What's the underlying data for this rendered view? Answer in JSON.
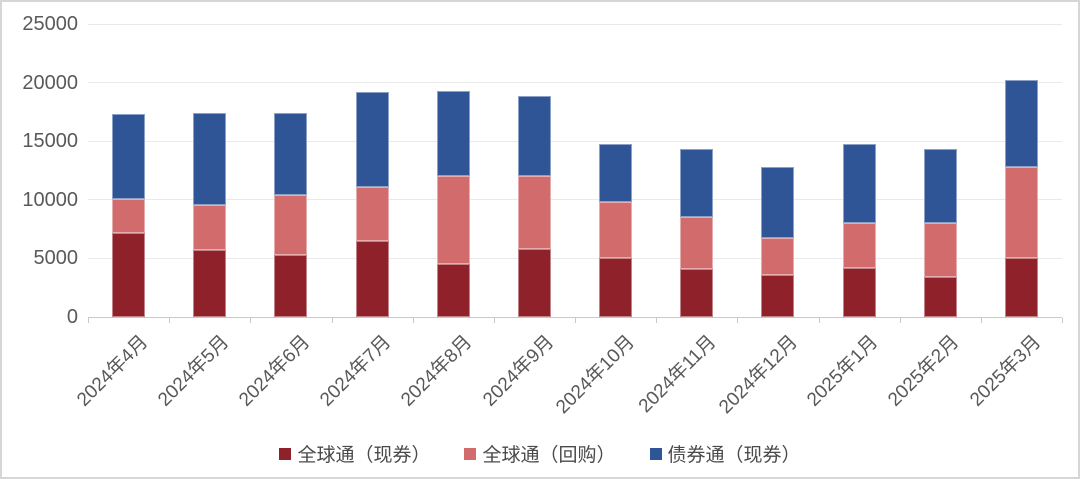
{
  "chart_data": {
    "type": "bar",
    "stacked": true,
    "title": "",
    "categories": [
      "2024年4月",
      "2024年5月",
      "2024年6月",
      "2024年7月",
      "2024年8月",
      "2024年9月",
      "2024年10月",
      "2024年11月",
      "2024年12月",
      "2025年1月",
      "2025年2月",
      "2025年3月"
    ],
    "series": [
      {
        "name": "全球通（现券）",
        "color": "#8E2129",
        "values": [
          7200,
          5700,
          5300,
          6500,
          4500,
          5800,
          5000,
          4100,
          3600,
          4200,
          3400,
          5000
        ]
      },
      {
        "name": "全球通（回购）",
        "color": "#D26B6C",
        "values": [
          2900,
          3900,
          5100,
          4600,
          7500,
          6200,
          4800,
          4400,
          3100,
          3800,
          4600,
          7800
        ]
      },
      {
        "name": "债券通（现券）",
        "color": "#2F5597",
        "values": [
          7200,
          7800,
          7000,
          8100,
          7300,
          6900,
          5000,
          5800,
          6100,
          6800,
          6300,
          7400
        ]
      }
    ],
    "stack_totals": [
      17300,
      17400,
      17400,
      19200,
      19300,
      18900,
      14800,
      14300,
      12800,
      14800,
      14300,
      20200
    ],
    "ylim": [
      0,
      25000
    ],
    "yticks": [
      0,
      5000,
      10000,
      15000,
      20000,
      25000
    ],
    "ytick_labels": [
      "0",
      "5000",
      "10000",
      "15000",
      "20000",
      "25000"
    ],
    "grid": true,
    "legend_position": "bottom",
    "xlabel": "",
    "ylabel": "",
    "colors": {
      "grid": "#E9E9E9",
      "axis": "#C9C9C9",
      "tick_label": "#595959",
      "legend_text": "#4A4A4A",
      "frame_border": "#D6D6D6",
      "background": "#FFFFFF"
    }
  }
}
